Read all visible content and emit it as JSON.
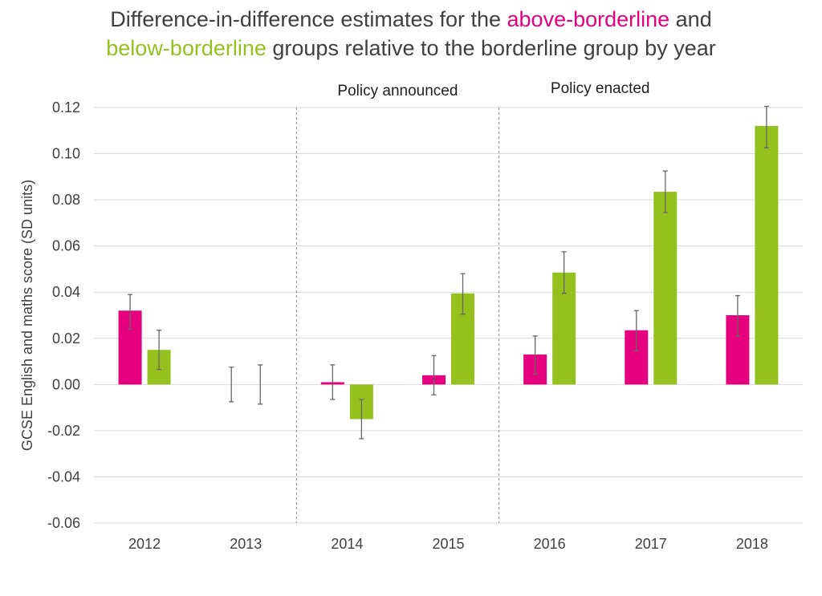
{
  "title": {
    "part1": "Difference-in-difference estimates for the ",
    "highlight1": "above-borderline",
    "part2": " and",
    "highlight2": "below-borderline",
    "part3": " groups relative to the borderline group by year"
  },
  "colors": {
    "above": "#e6007e",
    "below": "#95c11f",
    "title_text": "#404040",
    "grid": "#d9d9d9",
    "error_bar": "#666666"
  },
  "chart_data": {
    "type": "bar",
    "title": "Difference-in-difference estimates for the above-borderline and below-borderline groups relative to the borderline group by year",
    "xlabel": "",
    "ylabel": "GCSE English and maths score (SD units)",
    "categories": [
      "2012",
      "2013",
      "2014",
      "2015",
      "2016",
      "2017",
      "2018"
    ],
    "ylim": [
      -0.06,
      0.12
    ],
    "yticks": [
      -0.06,
      -0.04,
      -0.02,
      0.0,
      0.02,
      0.04,
      0.06,
      0.08,
      0.1,
      0.12
    ],
    "ytick_labels": [
      "-0.06",
      "-0.04",
      "-0.02",
      "0.00",
      "0.02",
      "0.04",
      "0.06",
      "0.08",
      "0.10",
      "0.12"
    ],
    "grid": true,
    "series": [
      {
        "name": "above-borderline",
        "color": "#e6007e",
        "values": [
          0.032,
          0.0,
          0.001,
          0.004,
          0.013,
          0.0235,
          0.03
        ],
        "ci_low": [
          0.024,
          -0.0075,
          -0.0065,
          -0.0045,
          0.0045,
          0.0145,
          0.021
        ],
        "ci_high": [
          0.039,
          0.0075,
          0.0085,
          0.0125,
          0.021,
          0.032,
          0.0385
        ]
      },
      {
        "name": "below-borderline",
        "color": "#95c11f",
        "values": [
          0.015,
          0.0,
          -0.015,
          0.0395,
          0.0485,
          0.0835,
          0.112
        ],
        "ci_low": [
          0.0065,
          -0.0085,
          -0.0235,
          0.0305,
          0.0395,
          0.0745,
          0.1025
        ],
        "ci_high": [
          0.0235,
          0.0085,
          -0.0065,
          0.048,
          0.0575,
          0.0925,
          0.1205
        ]
      }
    ],
    "annotations": [
      {
        "text": "Policy announced",
        "divider_after_category_index": 1
      },
      {
        "text": "Policy enacted",
        "divider_after_category_index": 3
      }
    ]
  }
}
